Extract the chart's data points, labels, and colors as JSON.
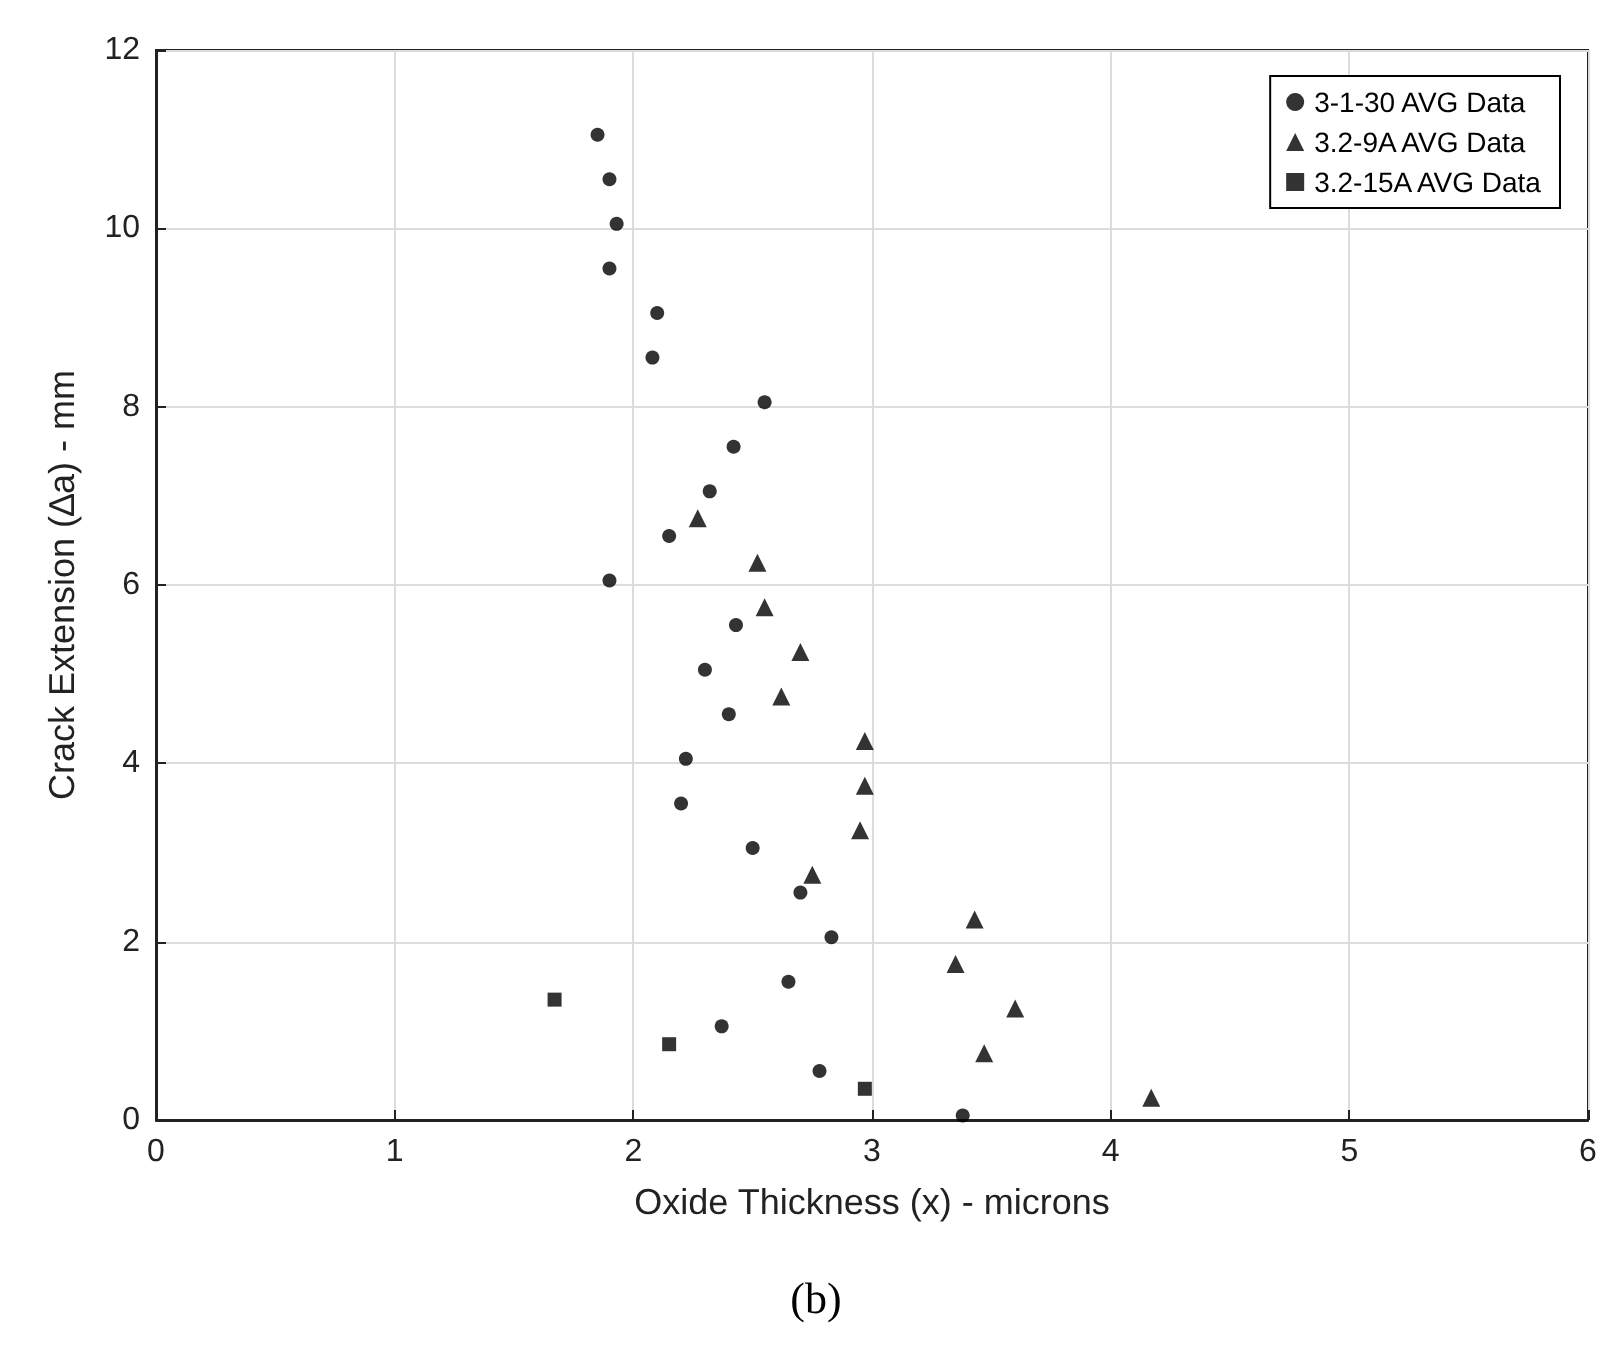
{
  "chart_data": {
    "type": "scatter",
    "xlabel": "Oxide Thickness (x) - microns",
    "ylabel": "Crack Extension (∆a) - mm",
    "annotations": [
      "(b)"
    ],
    "xlim": [
      0,
      6
    ],
    "xticks": [
      0,
      1,
      2,
      3,
      4,
      5,
      6
    ],
    "ylim": [
      0,
      12
    ],
    "yticks": [
      0,
      2,
      4,
      6,
      8,
      10,
      12
    ],
    "grid": true,
    "legend": "top right",
    "series": [
      {
        "name": "3-1-30 AVG Data",
        "color": "#000000",
        "marker": "circle",
        "x": [
          1.85,
          1.9,
          1.93,
          1.9,
          2.1,
          2.08,
          2.55,
          2.42,
          2.32,
          2.15,
          1.9,
          2.43,
          2.3,
          2.4,
          2.22,
          2.2,
          2.5,
          2.7,
          2.83,
          2.65,
          2.37,
          2.78,
          3.38
        ],
        "values": [
          11.05,
          10.55,
          10.05,
          9.55,
          9.05,
          8.55,
          8.05,
          7.55,
          7.05,
          6.55,
          6.05,
          5.55,
          5.05,
          4.55,
          4.05,
          3.55,
          3.05,
          2.55,
          2.05,
          1.55,
          1.05,
          0.55,
          0.05
        ]
      },
      {
        "name": "3.2-9A AVG Data",
        "color": "#000000",
        "marker": "triangle",
        "x": [
          2.27,
          2.52,
          2.55,
          2.7,
          2.62,
          2.97,
          2.97,
          2.95,
          2.75,
          3.43,
          3.35,
          3.6,
          3.47,
          4.17
        ],
        "values": [
          6.75,
          6.25,
          5.75,
          5.25,
          4.75,
          4.25,
          3.75,
          3.25,
          2.75,
          2.25,
          1.75,
          1.25,
          0.75,
          0.25
        ]
      },
      {
        "name": "3.2-15A AVG Data",
        "color": "#000000",
        "marker": "square",
        "x": [
          1.67,
          2.15,
          2.97
        ],
        "values": [
          1.35,
          0.85,
          0.35
        ]
      }
    ]
  }
}
